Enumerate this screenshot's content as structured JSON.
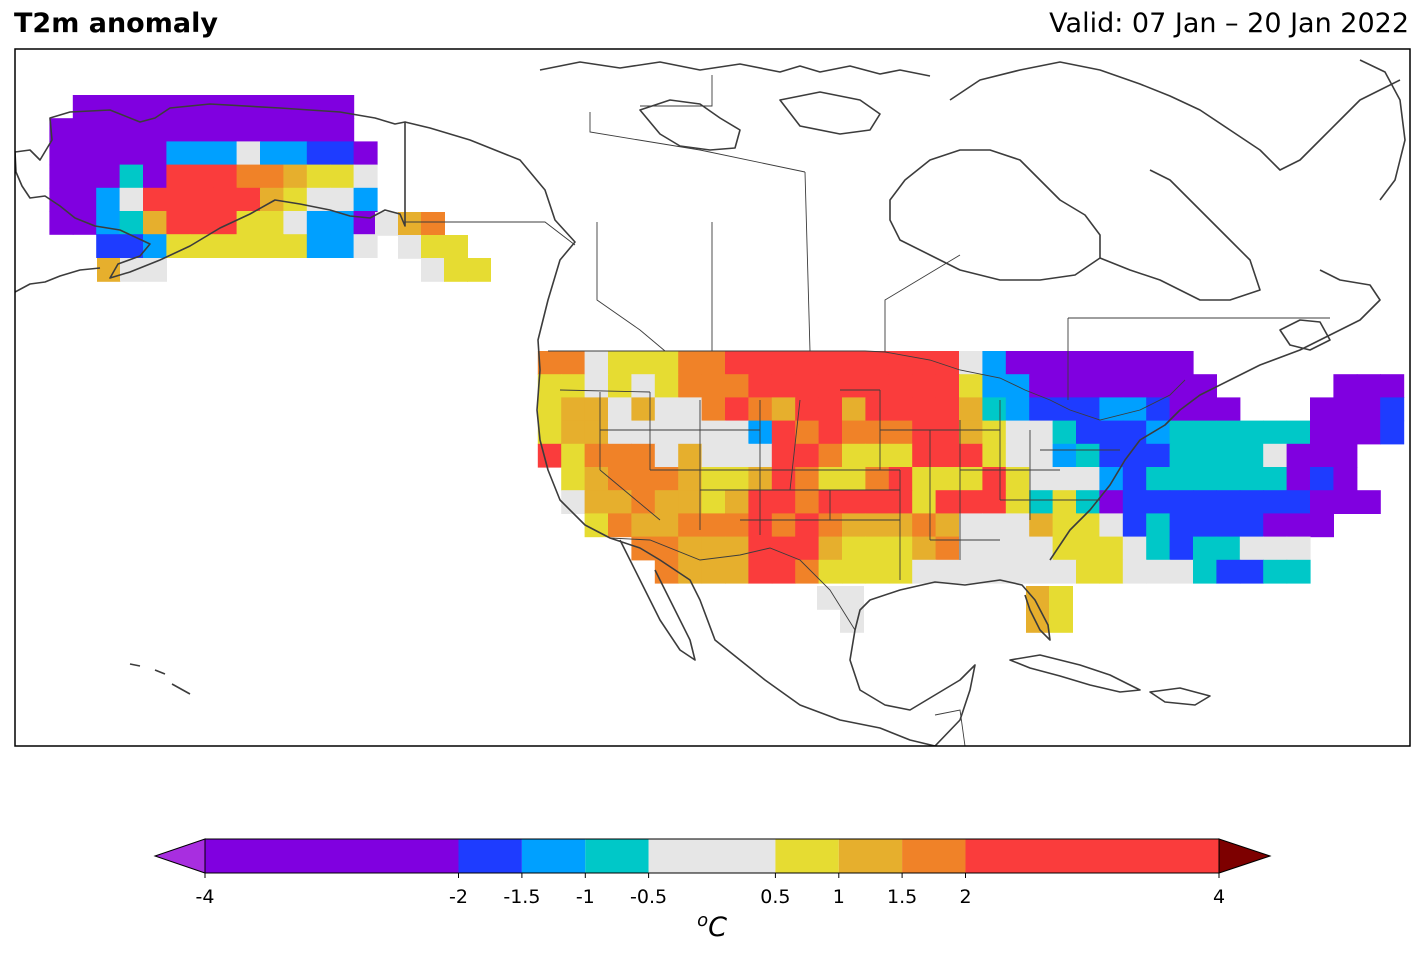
{
  "header": {
    "title": "T2m anomaly",
    "valid": "Valid: 07 Jan – 20 Jan 2022"
  },
  "colorbar": {
    "unit_base": "C",
    "unit_sup": "o",
    "ticks": [
      "-4",
      "-2",
      "-1.5",
      "-1",
      "-0.5",
      "0.5",
      "1",
      "1.5",
      "2",
      "4"
    ],
    "tick_values": [
      -4,
      -2,
      -1.5,
      -1,
      -0.5,
      0.5,
      1,
      1.5,
      2,
      4
    ],
    "under_color": "#a82ee0",
    "over_color": "#7d0000",
    "bins": [
      {
        "lo": -4,
        "hi": -2,
        "color": "#8000e0"
      },
      {
        "lo": -2,
        "hi": -1.5,
        "color": "#1e3cff"
      },
      {
        "lo": -1.5,
        "hi": -1,
        "color": "#00a0ff"
      },
      {
        "lo": -1,
        "hi": -0.5,
        "color": "#00c8c8"
      },
      {
        "lo": -0.5,
        "hi": 0.5,
        "color": "#e6e6e6"
      },
      {
        "lo": 0.5,
        "hi": 1,
        "color": "#e6dc32"
      },
      {
        "lo": 1,
        "hi": 1.5,
        "color": "#e6af2d"
      },
      {
        "lo": 1.5,
        "hi": 2,
        "color": "#f08228"
      },
      {
        "lo": 2,
        "hi": 4,
        "color": "#fa3c3c"
      }
    ]
  },
  "map_style": {
    "coast_color": "#3c3c3c",
    "border_color": "#3c3c3c",
    "frame_color": "#000000"
  },
  "anomaly_grid": {
    "legend": "- = no data, 0 = < -2 (purple), 1 = -2..-1.5, 2 = -1.5..-1, 3 = -1..-0.5, 4 = -0.5..0.5, 5 = 0.5..1, 6 = 1..1.5, 7 = 1.5..2, 8 = 2..4",
    "alaska": [
      "--000000000000--",
      "-0000000000000--",
      "-00000222422110-",
      "-00030888776554-",
      "-00248888865442-",
      "-00236888554220-",
      "---112555555224-"
    ],
    "conus": [
      "--7745557788888888884200000000---------",
      "--55454577788888888852200000000-----000",
      "--566464478768868888632111221000---0001",
      "--5664444442878777886544311123333330001",
      "--85777464448875558885442311133334000",
      "---5677765568755785558544421333333010",
      "---46676656887888858885353011111111000",
      "----57667778787666764446554131111000",
      "------77666888655567444455543133444-",
      "-------7666887555544444445544431133"
    ]
  }
}
